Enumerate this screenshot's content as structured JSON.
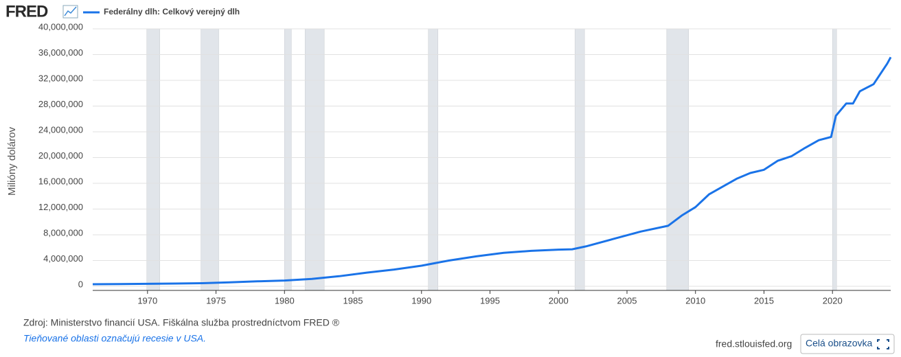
{
  "chart_data": {
    "type": "line",
    "logo": "FRED",
    "legend_label": "Federálny dlh: Celkový verejný dlh",
    "ylabel": "Milióny dolárov",
    "source": "Zdroj: Ministerstvo financií USA. Fiškálna služba prostredníctvom FRED ®",
    "note": "Tieňované oblasti označujú recesie v USA.",
    "site": "fred.stlouisfed.org",
    "button": "Celá obrazovka",
    "x": [
      1966,
      1968,
      1970,
      1972,
      1974,
      1975,
      1976,
      1978,
      1980,
      1982,
      1984,
      1986,
      1988,
      1990,
      1992,
      1994,
      1996,
      1998,
      2000,
      2001,
      2002,
      2004,
      2006,
      2008,
      2009,
      2010,
      2011,
      2012,
      2013,
      2014,
      2015,
      2016,
      2017,
      2018,
      2019,
      2019.9,
      2020.25,
      2021,
      2021.5,
      2022,
      2023,
      2024,
      2024.25
    ],
    "series": [
      {
        "name": "Federálny dlh: Celkový verejný dlh",
        "color": "#1a73e8",
        "values": [
          320000,
          350000,
          380000,
          430000,
          480000,
          540000,
          620000,
          770000,
          900000,
          1140000,
          1570000,
          2120000,
          2600000,
          3200000,
          4000000,
          4650000,
          5200000,
          5500000,
          5700000,
          5750000,
          6200000,
          7350000,
          8500000,
          9400000,
          11000000,
          12300000,
          14300000,
          15500000,
          16700000,
          17600000,
          18100000,
          19500000,
          20200000,
          21500000,
          22700000,
          23200000,
          26500000,
          28400000,
          28400000,
          30300000,
          31400000,
          34600000,
          35600000
        ]
      }
    ],
    "recessions": [
      [
        1969.95,
        1970.9
      ],
      [
        1973.9,
        1975.2
      ],
      [
        1980.0,
        1980.5
      ],
      [
        1981.5,
        1982.9
      ],
      [
        1990.5,
        1991.2
      ],
      [
        2001.2,
        2001.9
      ],
      [
        2007.9,
        2009.5
      ],
      [
        2020.0,
        2020.3
      ]
    ],
    "xlim": [
      1966,
      2024.25
    ],
    "xticks": [
      1970,
      1975,
      1980,
      1985,
      1990,
      1995,
      2000,
      2005,
      2010,
      2015,
      2020
    ],
    "ylim": [
      0,
      40000000
    ],
    "yticks": [
      0,
      {
        "value": 4000000,
        "label": "4,000,000"
      },
      {
        "value": 8000000,
        "label": "8,000,000"
      },
      {
        "value": 12000000,
        "label": "12,000,000"
      },
      {
        "value": 16000000,
        "label": "16,000,000"
      },
      {
        "value": 20000000,
        "label": "20,000,000"
      },
      {
        "value": 24000000,
        "label": "24,000,000"
      },
      {
        "value": 28000000,
        "label": "28,000,000"
      },
      {
        "value": 32000000,
        "label": "32,000,000"
      },
      {
        "value": 36000000,
        "label": "36,000,000"
      },
      {
        "value": 40000000,
        "label": "40,000,000"
      }
    ],
    "grid": true
  }
}
